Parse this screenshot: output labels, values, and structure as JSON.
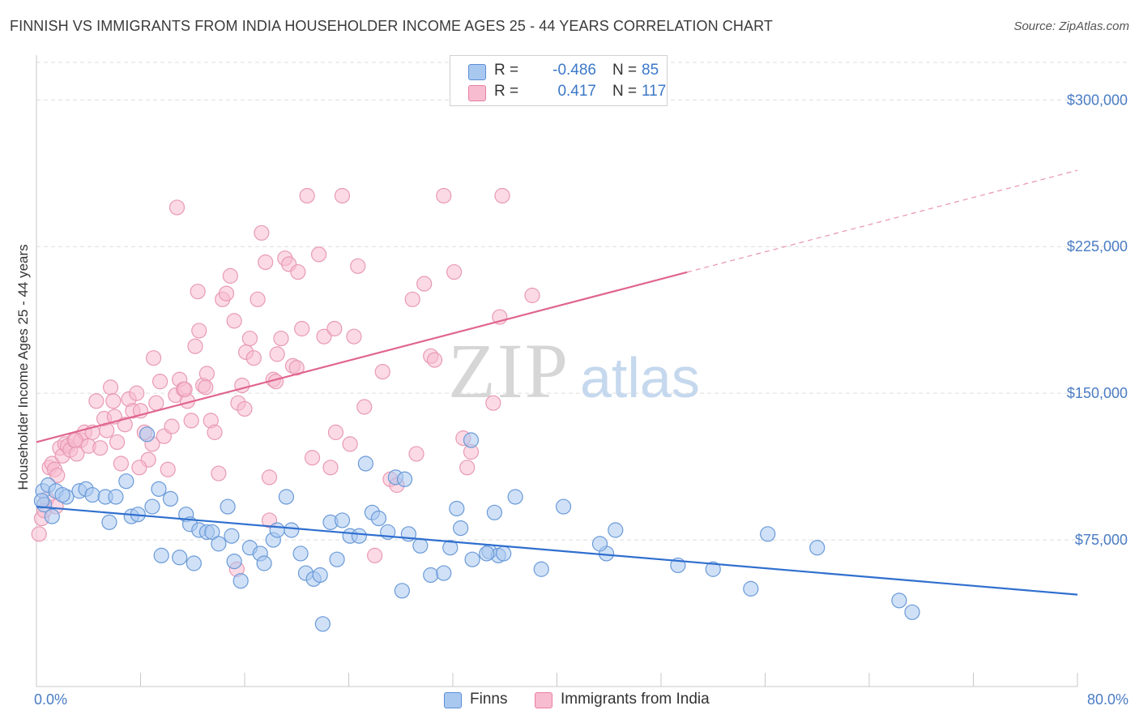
{
  "title": "FINNISH VS IMMIGRANTS FROM INDIA HOUSEHOLDER INCOME AGES 25 - 44 YEARS CORRELATION CHART",
  "source": "Source: ZipAtlas.com",
  "watermark": {
    "zip": "ZIP",
    "atlas": "atlas"
  },
  "legend": {
    "rows": [
      {
        "r_label": "R =",
        "r_value": "-0.486",
        "n_label": "N =",
        "n_value": "85",
        "color": "#a9c8f0",
        "border": "#5b8fd6"
      },
      {
        "r_label": "R =",
        "r_value": "0.417",
        "n_label": "N =",
        "n_value": "117",
        "color": "#f7bcd0",
        "border": "#e87fa2"
      }
    ]
  },
  "bottom_legend": {
    "finns": "Finns",
    "india": "Immigrants from India"
  },
  "colors": {
    "finns_fill": "#a9c8f0",
    "finns_stroke": "#6a9ad8",
    "finns_line": "#2f6fcf",
    "india_fill": "#f7bcd0",
    "india_stroke": "#e89ab4",
    "india_line": "#e0658f",
    "axis_text": "#4a7cc4",
    "grid": "#dddddd"
  },
  "chart_data": {
    "type": "scatter",
    "title": "FINNISH VS IMMIGRANTS FROM INDIA HOUSEHOLDER INCOME AGES 25 - 44 YEARS CORRELATION CHART",
    "xlabel": "",
    "ylabel": "Householder Income Ages 25 - 44 years",
    "xlim": [
      0,
      80
    ],
    "ylim": [
      0,
      320000
    ],
    "x_tick_labels": [
      "0.0%",
      "80.0%"
    ],
    "y_ticks": [
      75000,
      150000,
      225000,
      300000
    ],
    "y_tick_labels": [
      "$75,000",
      "$150,000",
      "$225,000",
      "$300,000"
    ],
    "grid": true,
    "series": [
      {
        "name": "Finns",
        "r": -0.486,
        "n": 85,
        "trend": {
          "x": [
            0,
            80
          ],
          "y": [
            92000,
            47000
          ],
          "dashed_from_x": null
        },
        "points": [
          [
            0.5,
            100000
          ],
          [
            0.9,
            103000
          ],
          [
            0.6,
            93000
          ],
          [
            1.5,
            100000
          ],
          [
            1.2,
            87000
          ],
          [
            2.3,
            97000
          ],
          [
            3.3,
            100000
          ],
          [
            3.8,
            101000
          ],
          [
            4.3,
            98000
          ],
          [
            5.3,
            97000
          ],
          [
            5.6,
            84000
          ],
          [
            6.9,
            105000
          ],
          [
            7.3,
            87000
          ],
          [
            7.8,
            88000
          ],
          [
            8.5,
            129000
          ],
          [
            8.9,
            92000
          ],
          [
            9.4,
            101000
          ],
          [
            9.6,
            67000
          ],
          [
            10.3,
            96000
          ],
          [
            11.0,
            66000
          ],
          [
            11.5,
            88000
          ],
          [
            11.8,
            83000
          ],
          [
            12.1,
            63000
          ],
          [
            12.5,
            80000
          ],
          [
            13.1,
            79000
          ],
          [
            13.5,
            79000
          ],
          [
            14.0,
            73000
          ],
          [
            14.7,
            92000
          ],
          [
            15.2,
            64000
          ],
          [
            15.7,
            54000
          ],
          [
            16.4,
            71000
          ],
          [
            17.2,
            68000
          ],
          [
            17.5,
            63000
          ],
          [
            18.2,
            75000
          ],
          [
            18.5,
            80000
          ],
          [
            19.2,
            97000
          ],
          [
            19.6,
            80000
          ],
          [
            20.3,
            68000
          ],
          [
            20.7,
            58000
          ],
          [
            21.3,
            55000
          ],
          [
            21.8,
            57000
          ],
          [
            22.0,
            32000
          ],
          [
            22.6,
            84000
          ],
          [
            23.1,
            65000
          ],
          [
            23.5,
            85000
          ],
          [
            24.1,
            77000
          ],
          [
            24.8,
            77000
          ],
          [
            25.3,
            114000
          ],
          [
            25.8,
            89000
          ],
          [
            26.3,
            86000
          ],
          [
            27.0,
            79000
          ],
          [
            27.6,
            107000
          ],
          [
            28.1,
            49000
          ],
          [
            28.6,
            78000
          ],
          [
            29.5,
            72000
          ],
          [
            30.3,
            57000
          ],
          [
            31.3,
            58000
          ],
          [
            31.8,
            71000
          ],
          [
            32.3,
            91000
          ],
          [
            32.6,
            81000
          ],
          [
            33.5,
            65000
          ],
          [
            34.8,
            69000
          ],
          [
            35.2,
            89000
          ],
          [
            35.5,
            67000
          ],
          [
            35.9,
            68000
          ],
          [
            36.8,
            97000
          ],
          [
            38.8,
            60000
          ],
          [
            40.5,
            92000
          ],
          [
            43.8,
            68000
          ],
          [
            43.3,
            73000
          ],
          [
            44.5,
            80000
          ],
          [
            49.3,
            62000
          ],
          [
            52.0,
            60000
          ],
          [
            54.9,
            50000
          ],
          [
            56.2,
            78000
          ],
          [
            60.0,
            71000
          ],
          [
            66.3,
            44000
          ],
          [
            67.3,
            38000
          ],
          [
            28.3,
            106000
          ],
          [
            34.6,
            68000
          ],
          [
            0.4,
            95000
          ],
          [
            2.0,
            98000
          ],
          [
            6.1,
            97000
          ],
          [
            15.0,
            77000
          ],
          [
            33.4,
            126000
          ]
        ]
      },
      {
        "name": "Immigrants from India",
        "r": 0.417,
        "n": 117,
        "trend": {
          "x": [
            0,
            80
          ],
          "y": [
            125000,
            264000
          ],
          "dashed_from_x": 50
        },
        "points": [
          [
            0.2,
            78000
          ],
          [
            0.4,
            86000
          ],
          [
            0.6,
            90000
          ],
          [
            0.8,
            96000
          ],
          [
            1.0,
            112000
          ],
          [
            1.2,
            114000
          ],
          [
            1.4,
            111000
          ],
          [
            1.6,
            108000
          ],
          [
            1.8,
            122000
          ],
          [
            2.0,
            118000
          ],
          [
            2.2,
            124000
          ],
          [
            2.4,
            123000
          ],
          [
            2.6,
            121000
          ],
          [
            2.9,
            126000
          ],
          [
            3.1,
            119000
          ],
          [
            3.4,
            126000
          ],
          [
            3.7,
            130000
          ],
          [
            4.0,
            123000
          ],
          [
            4.3,
            130000
          ],
          [
            4.6,
            146000
          ],
          [
            4.9,
            122000
          ],
          [
            5.2,
            137000
          ],
          [
            5.4,
            131000
          ],
          [
            5.7,
            153000
          ],
          [
            6.0,
            138000
          ],
          [
            6.2,
            125000
          ],
          [
            6.5,
            114000
          ],
          [
            6.8,
            134000
          ],
          [
            7.1,
            147000
          ],
          [
            7.4,
            141000
          ],
          [
            7.7,
            150000
          ],
          [
            8.0,
            141000
          ],
          [
            8.3,
            130000
          ],
          [
            8.6,
            116000
          ],
          [
            8.9,
            124000
          ],
          [
            9.2,
            145000
          ],
          [
            9.5,
            156000
          ],
          [
            9.8,
            128000
          ],
          [
            10.1,
            111000
          ],
          [
            10.4,
            133000
          ],
          [
            10.7,
            149000
          ],
          [
            11.0,
            157000
          ],
          [
            11.3,
            152000
          ],
          [
            11.6,
            146000
          ],
          [
            11.9,
            136000
          ],
          [
            12.2,
            174000
          ],
          [
            12.5,
            182000
          ],
          [
            12.8,
            154000
          ],
          [
            13.1,
            160000
          ],
          [
            13.4,
            136000
          ],
          [
            13.7,
            130000
          ],
          [
            14.0,
            109000
          ],
          [
            14.3,
            198000
          ],
          [
            14.6,
            201000
          ],
          [
            14.9,
            210000
          ],
          [
            15.2,
            187000
          ],
          [
            15.5,
            145000
          ],
          [
            15.8,
            154000
          ],
          [
            16.1,
            171000
          ],
          [
            16.4,
            178000
          ],
          [
            16.7,
            168000
          ],
          [
            17.0,
            198000
          ],
          [
            17.3,
            232000
          ],
          [
            17.6,
            217000
          ],
          [
            17.9,
            107000
          ],
          [
            18.2,
            157000
          ],
          [
            18.5,
            170000
          ],
          [
            18.8,
            178000
          ],
          [
            19.1,
            219000
          ],
          [
            19.4,
            216000
          ],
          [
            19.7,
            164000
          ],
          [
            20.1,
            212000
          ],
          [
            20.4,
            183000
          ],
          [
            20.8,
            251000
          ],
          [
            21.2,
            117000
          ],
          [
            21.7,
            221000
          ],
          [
            22.1,
            179000
          ],
          [
            22.6,
            112000
          ],
          [
            23.0,
            130000
          ],
          [
            23.5,
            251000
          ],
          [
            24.1,
            124000
          ],
          [
            24.4,
            179000
          ],
          [
            24.7,
            215000
          ],
          [
            25.2,
            143000
          ],
          [
            26.0,
            67000
          ],
          [
            27.2,
            106000
          ],
          [
            27.7,
            103000
          ],
          [
            28.9,
            198000
          ],
          [
            29.2,
            119000
          ],
          [
            29.8,
            206000
          ],
          [
            30.3,
            169000
          ],
          [
            30.6,
            167000
          ],
          [
            31.3,
            251000
          ],
          [
            32.1,
            212000
          ],
          [
            33.1,
            112000
          ],
          [
            33.4,
            120000
          ],
          [
            35.1,
            145000
          ],
          [
            35.6,
            189000
          ],
          [
            38.1,
            200000
          ],
          [
            10.8,
            245000
          ],
          [
            11.4,
            152000
          ],
          [
            12.4,
            202000
          ],
          [
            15.4,
            60000
          ],
          [
            17.9,
            85000
          ],
          [
            1.5,
            92000
          ],
          [
            3.0,
            126000
          ],
          [
            5.9,
            146000
          ],
          [
            7.9,
            112000
          ],
          [
            9.0,
            168000
          ],
          [
            13.0,
            153000
          ],
          [
            16.0,
            142000
          ],
          [
            18.4,
            156000
          ],
          [
            20.0,
            163000
          ],
          [
            22.9,
            183000
          ],
          [
            26.6,
            161000
          ],
          [
            32.8,
            127000
          ],
          [
            35.8,
            251000
          ]
        ]
      }
    ]
  }
}
